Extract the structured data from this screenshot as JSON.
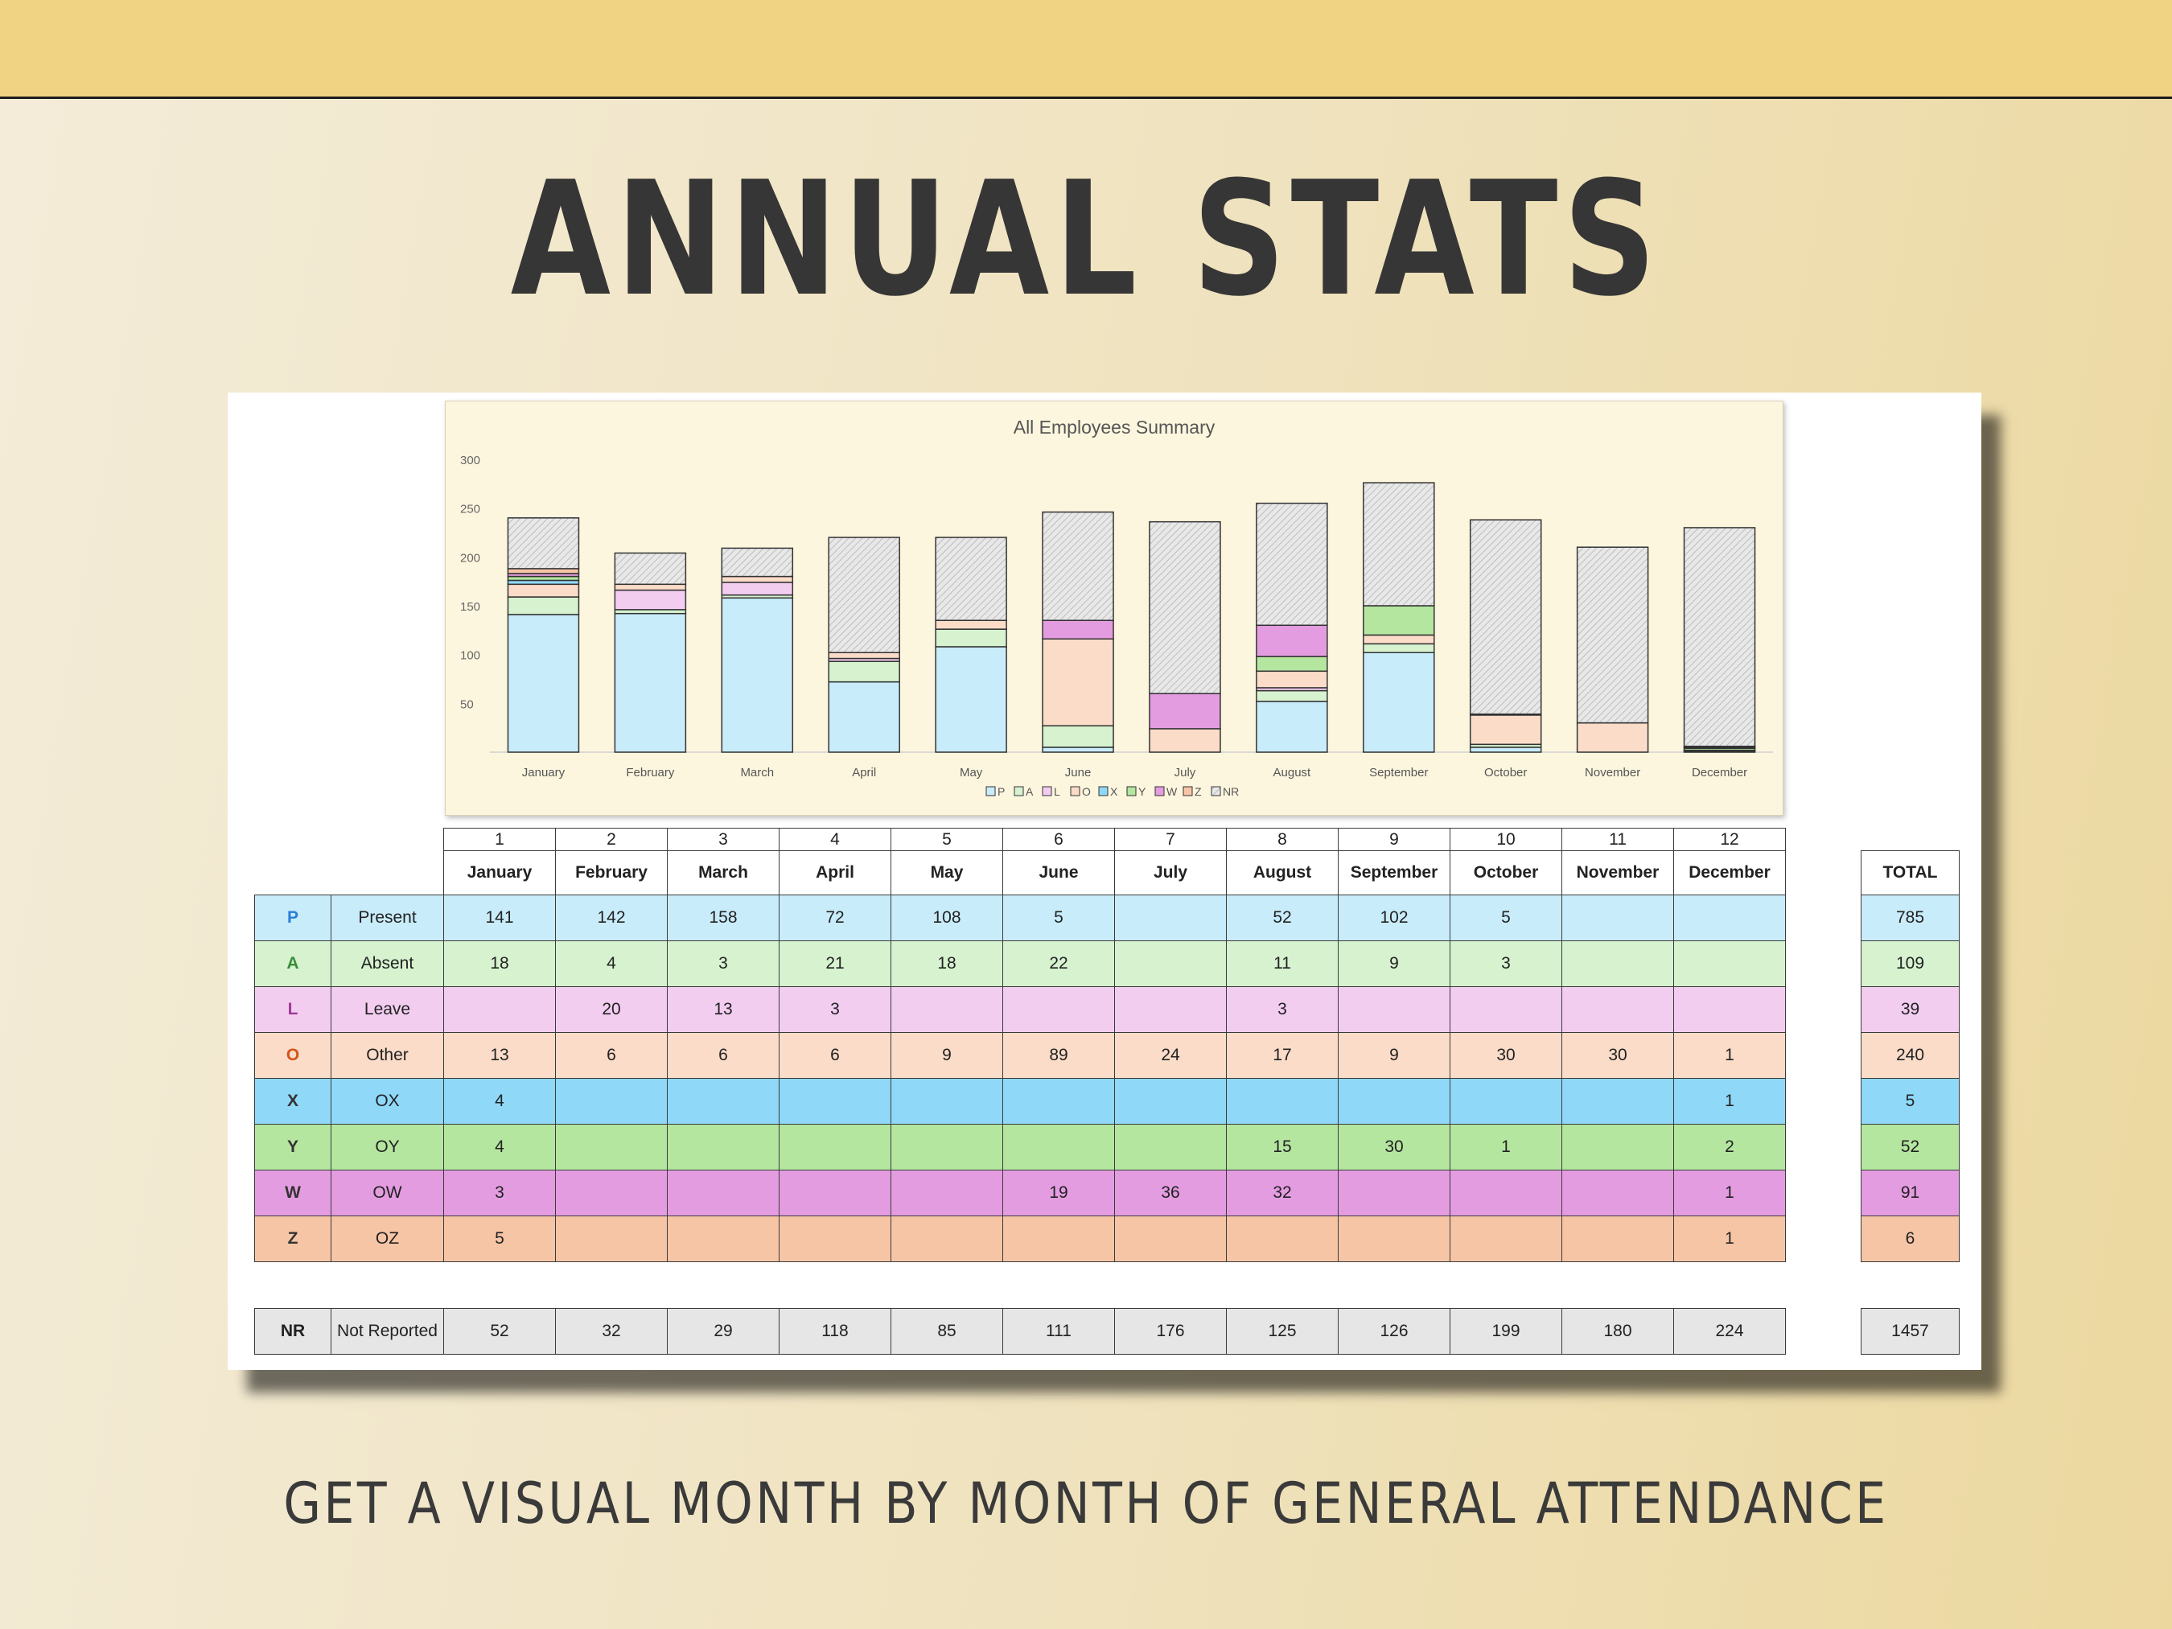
{
  "page": {
    "title": "ANNUAL STATS",
    "subtitle": "GET A VISUAL MONTH BY MONTH OF GENERAL ATTENDANCE"
  },
  "colors": {
    "P": "#c9ecfb",
    "A": "#d6f2cf",
    "L": "#f2cdf0",
    "O": "#fadcc8",
    "X": "#8fd8f8",
    "Y": "#b4e6a0",
    "W": "#e49ce0",
    "Z": "#f6c5a6",
    "NR": "#e6e6e6",
    "chart_bg": "#fdf6de"
  },
  "chart_data": {
    "type": "bar",
    "stacked": true,
    "title": "All Employees Summary",
    "ylim": [
      0,
      300
    ],
    "yticks": [
      50,
      100,
      150,
      200,
      250,
      300
    ],
    "legend_position": "bottom",
    "categories": [
      "January",
      "February",
      "March",
      "April",
      "May",
      "June",
      "July",
      "August",
      "September",
      "October",
      "November",
      "December"
    ],
    "series": [
      {
        "name": "P",
        "values": [
          141,
          142,
          158,
          72,
          108,
          5,
          0,
          52,
          102,
          5,
          0,
          0
        ]
      },
      {
        "name": "A",
        "values": [
          18,
          4,
          3,
          21,
          18,
          22,
          0,
          11,
          9,
          3,
          0,
          0
        ]
      },
      {
        "name": "L",
        "values": [
          0,
          20,
          13,
          3,
          0,
          0,
          0,
          3,
          0,
          0,
          0,
          0
        ]
      },
      {
        "name": "O",
        "values": [
          13,
          6,
          6,
          6,
          9,
          89,
          24,
          17,
          9,
          30,
          30,
          1
        ]
      },
      {
        "name": "X",
        "values": [
          4,
          0,
          0,
          0,
          0,
          0,
          0,
          0,
          0,
          0,
          0,
          1
        ]
      },
      {
        "name": "Y",
        "values": [
          4,
          0,
          0,
          0,
          0,
          0,
          0,
          15,
          30,
          1,
          0,
          2
        ]
      },
      {
        "name": "W",
        "values": [
          3,
          0,
          0,
          0,
          0,
          19,
          36,
          32,
          0,
          0,
          0,
          1
        ]
      },
      {
        "name": "Z",
        "values": [
          5,
          0,
          0,
          0,
          0,
          0,
          0,
          0,
          0,
          0,
          0,
          1
        ]
      },
      {
        "name": "NR",
        "values": [
          52,
          32,
          29,
          118,
          85,
          111,
          176,
          125,
          126,
          199,
          180,
          224
        ]
      }
    ]
  },
  "table": {
    "month_numbers": [
      "1",
      "2",
      "3",
      "4",
      "5",
      "6",
      "7",
      "8",
      "9",
      "10",
      "11",
      "12"
    ],
    "months": [
      "January",
      "February",
      "March",
      "April",
      "May",
      "June",
      "July",
      "August",
      "September",
      "October",
      "November",
      "December"
    ],
    "total_header": "TOTAL",
    "rows": [
      {
        "code": "P",
        "label": "Present",
        "values": [
          "141",
          "142",
          "158",
          "72",
          "108",
          "5",
          "",
          "52",
          "102",
          "5",
          "",
          ""
        ],
        "total": "785"
      },
      {
        "code": "A",
        "label": "Absent",
        "values": [
          "18",
          "4",
          "3",
          "21",
          "18",
          "22",
          "",
          "11",
          "9",
          "3",
          "",
          ""
        ],
        "total": "109"
      },
      {
        "code": "L",
        "label": "Leave",
        "values": [
          "",
          "20",
          "13",
          "3",
          "",
          "",
          "",
          "3",
          "",
          "",
          "",
          ""
        ],
        "total": "39"
      },
      {
        "code": "O",
        "label": "Other",
        "values": [
          "13",
          "6",
          "6",
          "6",
          "9",
          "89",
          "24",
          "17",
          "9",
          "30",
          "30",
          "1"
        ],
        "total": "240"
      },
      {
        "code": "X",
        "label": "OX",
        "values": [
          "4",
          "",
          "",
          "",
          "",
          "",
          "",
          "",
          "",
          "",
          "",
          "1"
        ],
        "total": "5"
      },
      {
        "code": "Y",
        "label": "OY",
        "values": [
          "4",
          "",
          "",
          "",
          "",
          "",
          "",
          "15",
          "30",
          "1",
          "",
          "2"
        ],
        "total": "52"
      },
      {
        "code": "W",
        "label": "OW",
        "values": [
          "3",
          "",
          "",
          "",
          "",
          "19",
          "36",
          "32",
          "",
          "",
          "",
          "1"
        ],
        "total": "91"
      },
      {
        "code": "Z",
        "label": "OZ",
        "values": [
          "5",
          "",
          "",
          "",
          "",
          "",
          "",
          "",
          "",
          "",
          "",
          "1"
        ],
        "total": "6"
      }
    ],
    "nr_row": {
      "code": "NR",
      "label": "Not Reported",
      "values": [
        "52",
        "32",
        "29",
        "118",
        "85",
        "111",
        "176",
        "125",
        "126",
        "199",
        "180",
        "224"
      ],
      "total": "1457"
    }
  }
}
